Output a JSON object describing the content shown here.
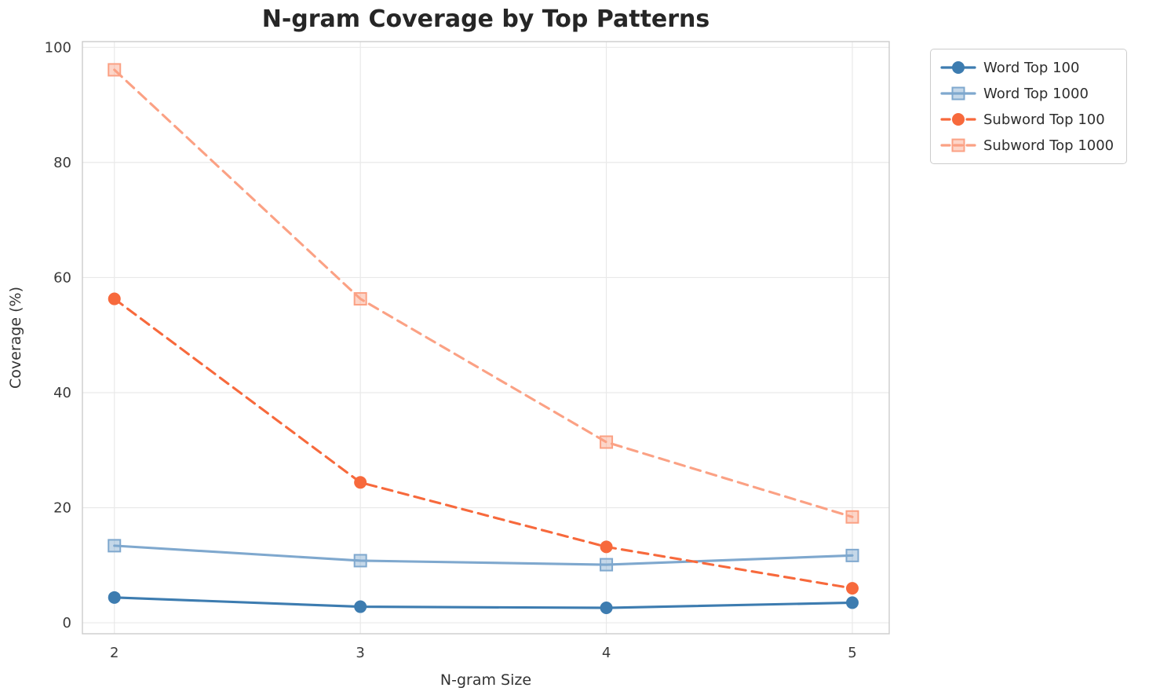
{
  "figure": {
    "background": "#ffffff",
    "grid_color": "#e9e9e9",
    "spine_color": "#cccccc"
  },
  "chart_data": {
    "type": "line",
    "title": "N-gram Coverage by Top Patterns",
    "xlabel": "N-gram Size",
    "ylabel": "Coverage (%)",
    "x": [
      2,
      3,
      4,
      5
    ],
    "xtick_labels": [
      "2",
      "3",
      "4",
      "5"
    ],
    "yticks": [
      0,
      20,
      40,
      60,
      80,
      100
    ],
    "ytick_labels": [
      "0",
      "20",
      "40",
      "60",
      "80",
      "100"
    ],
    "xlim": [
      1.87,
      5.15
    ],
    "ylim": [
      -1.9,
      101
    ],
    "grid": true,
    "legend_position": "upper-right-outside",
    "series": [
      {
        "name": "Word Top 100",
        "values": [
          4.4,
          2.8,
          2.6,
          3.5
        ],
        "color": "#3d7cb0",
        "marker": "circle",
        "line": "solid"
      },
      {
        "name": "Word Top 1000",
        "values": [
          13.4,
          10.8,
          10.1,
          11.7
        ],
        "color": "#7fa8ce",
        "marker": "square",
        "line": "solid"
      },
      {
        "name": "Subword Top 100",
        "values": [
          56.3,
          24.4,
          13.2,
          6.0
        ],
        "color": "#f7693c",
        "marker": "circle",
        "line": "dashed"
      },
      {
        "name": "Subword Top 1000",
        "values": [
          96.1,
          56.3,
          31.4,
          18.4
        ],
        "color": "#fba184",
        "marker": "square",
        "line": "dashed"
      }
    ]
  }
}
